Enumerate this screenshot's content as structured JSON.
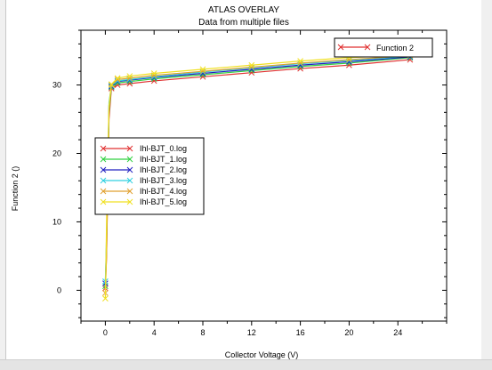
{
  "chart_data": {
    "type": "line",
    "title": "ATLAS OVERLAY",
    "subtitle": "Data from multiple files",
    "xlabel": "Collector Voltage (V)",
    "ylabel": "Function 2 ()",
    "xlim": [
      -2,
      28
    ],
    "ylim": [
      -4.5,
      38
    ],
    "x_ticks": [
      0,
      4,
      8,
      12,
      16,
      20,
      24
    ],
    "y_ticks": [
      0,
      10,
      20,
      30
    ],
    "grid": false,
    "legend_main": {
      "label": "Function 2",
      "color": "#e03030",
      "position": "top-right"
    },
    "legend_files_position": "center-left",
    "series": [
      {
        "name": "Ihl-BJT_0.log",
        "color": "#e03030",
        "x": [
          0,
          0.1,
          0.2,
          0.3,
          0.5,
          1,
          2,
          4,
          8,
          12,
          16,
          20,
          25
        ],
        "y": [
          0.3,
          5,
          15,
          25,
          29.5,
          30.0,
          30.2,
          30.6,
          31.2,
          31.8,
          32.4,
          32.9,
          33.7
        ]
      },
      {
        "name": "Ihl-BJT_1.log",
        "color": "#30d040",
        "x": [
          0,
          0.1,
          0.2,
          0.3,
          0.5,
          1,
          2,
          4,
          8,
          12,
          16,
          20,
          25
        ],
        "y": [
          0.6,
          6,
          16,
          26,
          29.7,
          30.3,
          30.5,
          30.9,
          31.5,
          32.1,
          32.7,
          33.2,
          34.0
        ]
      },
      {
        "name": "Ihl-BJT_2.log",
        "color": "#2020c0",
        "x": [
          0,
          0.1,
          0.2,
          0.3,
          0.5,
          1,
          2,
          4,
          8,
          12,
          16,
          20,
          25
        ],
        "y": [
          1.0,
          7,
          17,
          27,
          29.8,
          30.5,
          30.7,
          31.1,
          31.7,
          32.3,
          32.9,
          33.4,
          34.1
        ]
      },
      {
        "name": "Ihl-BJT_3.log",
        "color": "#30d0e0",
        "x": [
          0,
          0.1,
          0.2,
          0.3,
          0.5,
          1,
          2,
          4,
          8,
          12,
          16,
          20,
          25
        ],
        "y": [
          1.3,
          8,
          18,
          27.5,
          29.9,
          30.6,
          30.8,
          31.2,
          31.9,
          32.5,
          33.1,
          33.6,
          34.2
        ]
      },
      {
        "name": "Ihl-BJT_4.log",
        "color": "#e0a030",
        "x": [
          0,
          0.1,
          0.2,
          0.3,
          0.5,
          1,
          2,
          4,
          8,
          12,
          16,
          20,
          25
        ],
        "y": [
          -0.4,
          5,
          16,
          26.5,
          30.0,
          30.8,
          31.0,
          31.4,
          32.0,
          32.6,
          33.2,
          33.7,
          34.3
        ]
      },
      {
        "name": "Ihl-BJT_5.log",
        "color": "#f0e020",
        "x": [
          0,
          0.05,
          0.1,
          0.2,
          0.3,
          0.5,
          1,
          2,
          4,
          8,
          12,
          16,
          20,
          25
        ],
        "y": [
          -1.2,
          4,
          10,
          19,
          27,
          30.1,
          31.0,
          31.3,
          31.7,
          32.3,
          32.9,
          33.5,
          34.0,
          34.4
        ]
      }
    ]
  }
}
